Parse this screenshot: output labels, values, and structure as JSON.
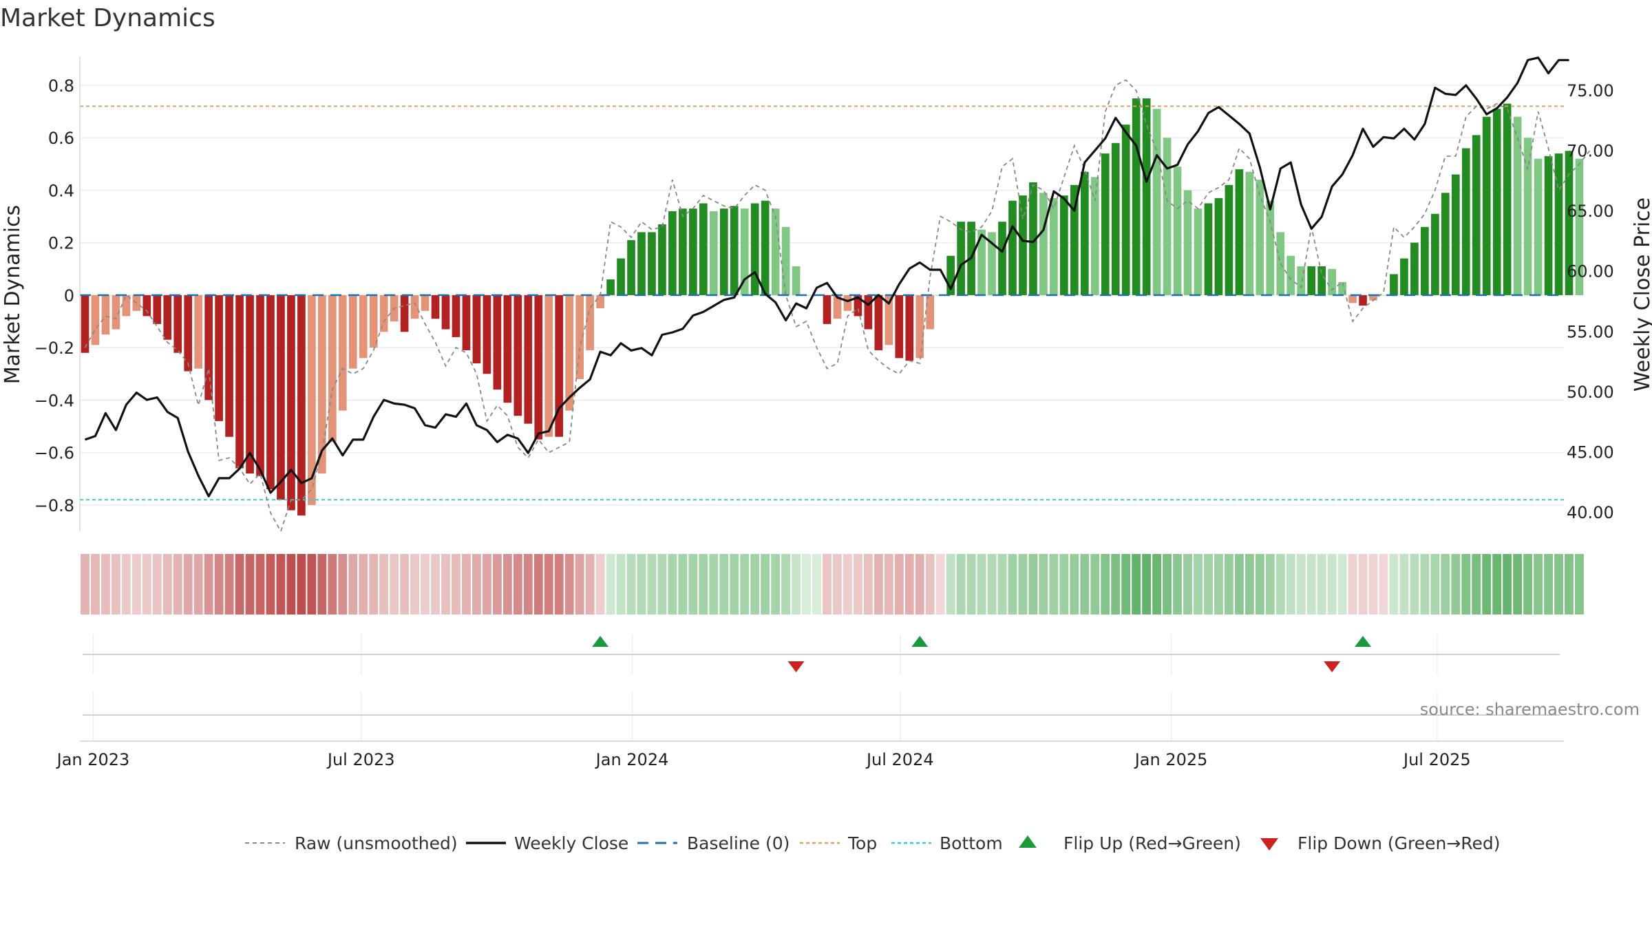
{
  "title": "Market Dynamics",
  "source": "source: sharemaestro.com",
  "chart_data": {
    "type": "bar",
    "ylabel_left": "Market Dynamics",
    "ylabel_right": "Weekly Close Price",
    "ylim_left": [
      -0.9,
      0.91
    ],
    "ylim_right": [
      38.4,
      77.8
    ],
    "left_ticks": [
      "0.8",
      "0.6",
      "0.4",
      "0.2",
      "0",
      "−0.2",
      "−0.4",
      "−0.6",
      "−0.8"
    ],
    "left_tick_values": [
      0.8,
      0.6,
      0.4,
      0.2,
      0,
      -0.2,
      -0.4,
      -0.6,
      -0.8
    ],
    "right_ticks": [
      "75.00",
      "70.00",
      "65.00",
      "60.00",
      "55.00",
      "50.00",
      "45.00",
      "40.00"
    ],
    "right_tick_values": [
      75,
      70,
      65,
      60,
      55,
      50,
      45,
      40
    ],
    "x_ticks": [
      "Jan 2023",
      "Jul 2023",
      "Jan 2024",
      "Jul 2024",
      "Jan 2025",
      "Jul 2025"
    ],
    "x_tick_weeks": [
      1.3,
      27.3,
      53.6,
      79.6,
      105.9,
      131.7
    ],
    "week_count": 144,
    "top_level": 0.72,
    "bottom_level": -0.78,
    "baseline": 0,
    "dynamics": [
      -0.22,
      -0.19,
      -0.15,
      -0.13,
      -0.08,
      -0.06,
      -0.08,
      -0.11,
      -0.17,
      -0.22,
      -0.29,
      -0.28,
      -0.4,
      -0.48,
      -0.54,
      -0.66,
      -0.68,
      -0.69,
      -0.74,
      -0.78,
      -0.82,
      -0.84,
      -0.8,
      -0.68,
      -0.56,
      -0.44,
      -0.28,
      -0.24,
      -0.2,
      -0.14,
      -0.1,
      -0.14,
      -0.09,
      -0.06,
      -0.09,
      -0.13,
      -0.16,
      -0.21,
      -0.26,
      -0.3,
      -0.36,
      -0.41,
      -0.46,
      -0.49,
      -0.55,
      -0.54,
      -0.54,
      -0.44,
      -0.32,
      -0.21,
      -0.05,
      0.06,
      0.14,
      0.21,
      0.24,
      0.24,
      0.27,
      0.32,
      0.33,
      0.33,
      0.35,
      0.32,
      0.33,
      0.34,
      0.33,
      0.35,
      0.36,
      0.33,
      0.26,
      0.11,
      0.0,
      0.0,
      -0.11,
      -0.09,
      -0.06,
      -0.08,
      -0.13,
      -0.21,
      -0.19,
      -0.24,
      -0.25,
      -0.24,
      -0.13,
      0.0,
      0.15,
      0.28,
      0.28,
      0.25,
      0.24,
      0.28,
      0.36,
      0.38,
      0.43,
      0.39,
      0.37,
      0.38,
      0.42,
      0.47,
      0.45,
      0.54,
      0.58,
      0.65,
      0.75,
      0.75,
      0.71,
      0.6,
      0.49,
      0.4,
      0.33,
      0.35,
      0.37,
      0.42,
      0.48,
      0.47,
      0.44,
      0.36,
      0.24,
      0.15,
      0.11,
      0.11,
      0.11,
      0.1,
      0.05,
      -0.03,
      -0.04,
      -0.02,
      0.0,
      0.08,
      0.14,
      0.2,
      0.26,
      0.31,
      0.39,
      0.46,
      0.56,
      0.61,
      0.68,
      0.71,
      0.73,
      0.68,
      0.6,
      0.52,
      0.53,
      0.54,
      0.55,
      0.52
    ],
    "raw": [
      -0.2,
      -0.13,
      -0.08,
      -0.09,
      0.0,
      -0.03,
      -0.06,
      -0.12,
      -0.18,
      -0.21,
      -0.26,
      -0.42,
      -0.28,
      -0.63,
      -0.62,
      -0.66,
      -0.72,
      -0.68,
      -0.83,
      -0.9,
      -0.78,
      -0.78,
      -0.74,
      -0.6,
      -0.36,
      -0.28,
      -0.3,
      -0.28,
      -0.21,
      -0.1,
      -0.05,
      -0.04,
      -0.03,
      -0.11,
      -0.18,
      -0.27,
      -0.2,
      -0.22,
      -0.3,
      -0.48,
      -0.42,
      -0.46,
      -0.58,
      -0.62,
      -0.55,
      -0.6,
      -0.58,
      -0.56,
      -0.2,
      -0.05,
      0.0,
      0.28,
      0.26,
      0.22,
      0.28,
      0.25,
      0.26,
      0.44,
      0.3,
      0.33,
      0.38,
      0.36,
      0.34,
      0.33,
      0.38,
      0.42,
      0.4,
      0.3,
      0.0,
      -0.12,
      -0.1,
      -0.2,
      -0.28,
      -0.26,
      -0.08,
      -0.05,
      -0.21,
      -0.25,
      -0.28,
      -0.3,
      -0.25,
      -0.26,
      0.07,
      0.3,
      0.28,
      0.25,
      0.24,
      0.26,
      0.32,
      0.49,
      0.52,
      0.29,
      0.42,
      0.4,
      0.33,
      0.45,
      0.57,
      0.48,
      0.36,
      0.7,
      0.8,
      0.82,
      0.78,
      0.65,
      0.55,
      0.36,
      0.33,
      0.36,
      0.33,
      0.39,
      0.41,
      0.44,
      0.56,
      0.52,
      0.38,
      0.28,
      0.12,
      0.06,
      0.03,
      0.26,
      0.08,
      0.02,
      0.05,
      -0.1,
      -0.05,
      -0.02,
      0.01,
      0.26,
      0.22,
      0.26,
      0.31,
      0.4,
      0.53,
      0.53,
      0.68,
      0.72,
      0.71,
      0.73,
      0.71,
      0.6,
      0.48,
      0.7,
      0.56,
      0.4,
      0.46,
      0.5,
      0.55
    ],
    "close": [
      46,
      46.3,
      48.2,
      46.8,
      48.9,
      49.9,
      49.3,
      49.5,
      48.3,
      47.8,
      45,
      43,
      41.3,
      42.8,
      42.8,
      43.6,
      44.9,
      43.5,
      41.6,
      42.5,
      43.5,
      42.4,
      42.8,
      45.1,
      46.1,
      44.7,
      46,
      46,
      47.9,
      49.3,
      49,
      48.9,
      48.6,
      47.2,
      47,
      48.1,
      47.9,
      49,
      47.2,
      46.8,
      45.8,
      46.4,
      46.1,
      44.9,
      46.5,
      46.7,
      48.6,
      49.5,
      50.3,
      51,
      53.3,
      53,
      54,
      53.4,
      53.6,
      53,
      54.7,
      54.9,
      55.2,
      56.3,
      56.6,
      57.1,
      57.6,
      57.8,
      59.3,
      59.9,
      58.1,
      57.4,
      55.9,
      57.3,
      56.9,
      58.6,
      59,
      57.8,
      57.5,
      57.8,
      57.2,
      58,
      57.3,
      58.9,
      60.2,
      60.7,
      60.1,
      60.1,
      58.5,
      60.5,
      61.1,
      63,
      62.3,
      61.6,
      63.7,
      62.5,
      62.4,
      63.4,
      66.6,
      66,
      65,
      69,
      70,
      71,
      72.7,
      71.5,
      70.4,
      67.4,
      69.6,
      68.5,
      68.8,
      70.5,
      71.6,
      73.1,
      73.6,
      72.9,
      72.2,
      71.4,
      68.6,
      65.1,
      68.5,
      69,
      65.5,
      63.5,
      64.5,
      67,
      68,
      69.6,
      71.8,
      70.3,
      71.1,
      71,
      71.8,
      70.9,
      72.2,
      75.2,
      74.7,
      74.6,
      75.4,
      74.3,
      73,
      73.5,
      74.4,
      75.6,
      77.5,
      77.7,
      76.4,
      77.5,
      77.5
    ],
    "strip": [
      0.22,
      0.19,
      0.15,
      0.13,
      0.08,
      0.06,
      0.08,
      0.11,
      0.17,
      0.22,
      0.29,
      0.28,
      0.4,
      0.48,
      0.54,
      0.66,
      0.68,
      0.69,
      0.74,
      0.78,
      0.82,
      0.84,
      0.8,
      0.68,
      0.56,
      0.44,
      0.28,
      0.24,
      0.2,
      0.14,
      0.1,
      0.14,
      0.09,
      0.06,
      0.09,
      0.13,
      0.16,
      0.21,
      0.26,
      0.3,
      0.36,
      0.41,
      0.46,
      0.49,
      0.55,
      0.54,
      0.54,
      0.44,
      0.32,
      0.21,
      0.05,
      0.06,
      0.14,
      0.21,
      0.24,
      0.24,
      0.27,
      0.32,
      0.33,
      0.33,
      0.35,
      0.32,
      0.33,
      0.34,
      0.33,
      0.35,
      0.36,
      0.33,
      0.26,
      0.11,
      0.0,
      0.0,
      0.11,
      0.09,
      0.06,
      0.08,
      0.13,
      0.21,
      0.19,
      0.24,
      0.25,
      0.24,
      0.13,
      0.0,
      0.15,
      0.28,
      0.28,
      0.25,
      0.24,
      0.28,
      0.36,
      0.38,
      0.43,
      0.39,
      0.37,
      0.38,
      0.42,
      0.47,
      0.45,
      0.54,
      0.58,
      0.65,
      0.75,
      0.75,
      0.71,
      0.6,
      0.49,
      0.4,
      0.33,
      0.35,
      0.37,
      0.42,
      0.48,
      0.47,
      0.44,
      0.36,
      0.24,
      0.15,
      0.11,
      0.11,
      0.11,
      0.1,
      0.05,
      0.03,
      0.04,
      0.02,
      0.0,
      0.08,
      0.14,
      0.2,
      0.26,
      0.31,
      0.39,
      0.46,
      0.56,
      0.61,
      0.68,
      0.71,
      0.73,
      0.68,
      0.6,
      0.52,
      0.53,
      0.54,
      0.55,
      0.52
    ],
    "flip_up_weeks": [
      50.5,
      81.5,
      124.5
    ],
    "flip_down_weeks": [
      69.5,
      121.5
    ]
  },
  "legend": {
    "raw": "Raw (unsmoothed)",
    "close": "Weekly Close",
    "baseline": "Baseline (0)",
    "top": "Top",
    "bottom": "Bottom",
    "flip_up": "Flip Up (Red→Green)",
    "flip_down": "Flip Down (Green→Red)"
  },
  "colors": {
    "red_strong": "#b22222",
    "red_light": "#e39478",
    "green_strong": "#228b22",
    "green_light": "#81c784",
    "close_line": "#111111",
    "raw_line": "#888888",
    "baseline": "#1f6fb4",
    "top": "#e0a060",
    "bottom": "#3cc8d0",
    "flip_up": "#1a9a3a",
    "flip_down": "#cc2222"
  }
}
